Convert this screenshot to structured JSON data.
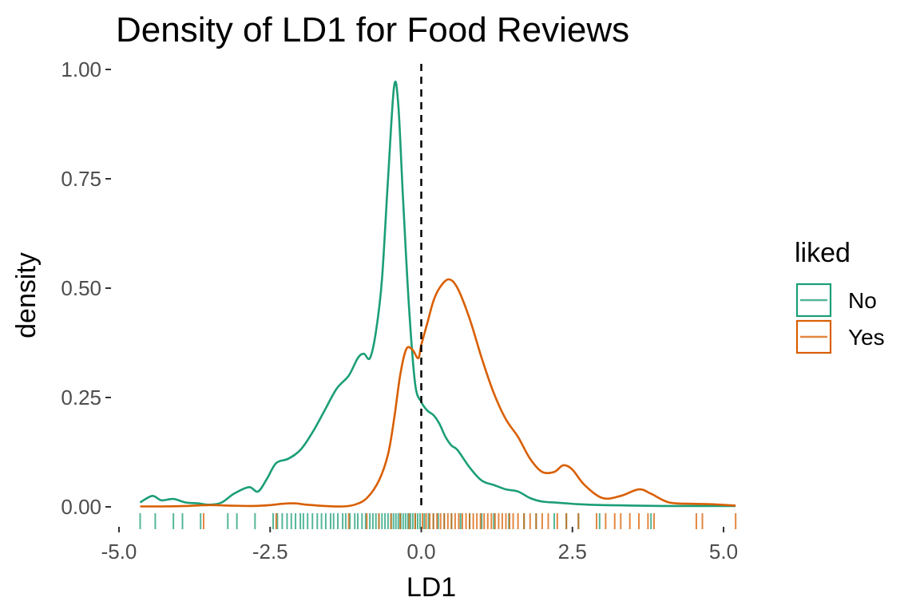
{
  "chart_data": {
    "type": "line",
    "title": "Density of LD1 for Food Reviews",
    "xlabel": "LD1",
    "ylabel": "density",
    "xlim": [
      -4.8,
      5.2
    ],
    "ylim": [
      0,
      1.0
    ],
    "xticks": [
      -5.0,
      -2.5,
      0.0,
      2.5,
      5.0
    ],
    "xtick_labels": [
      "-5.0",
      "-2.5",
      "0.0",
      "2.5",
      "5.0"
    ],
    "yticks": [
      0.0,
      0.25,
      0.5,
      0.75,
      1.0
    ],
    "ytick_labels": [
      "0.00",
      "0.25",
      "0.50",
      "0.75",
      "1.00"
    ],
    "vline": 0.0,
    "grid": false,
    "legend": {
      "title": "liked",
      "position": "right"
    },
    "series": [
      {
        "name": "No",
        "color": "#1b9e77",
        "x": [
          -4.65,
          -4.45,
          -4.3,
          -4.1,
          -3.9,
          -3.7,
          -3.5,
          -3.3,
          -3.1,
          -2.85,
          -2.7,
          -2.55,
          -2.4,
          -2.2,
          -2.0,
          -1.8,
          -1.6,
          -1.4,
          -1.2,
          -1.05,
          -0.95,
          -0.85,
          -0.75,
          -0.65,
          -0.55,
          -0.45,
          -0.38,
          -0.3,
          -0.2,
          -0.1,
          0.0,
          0.1,
          0.2,
          0.3,
          0.4,
          0.5,
          0.6,
          0.8,
          1.0,
          1.2,
          1.4,
          1.6,
          1.8,
          2.0,
          2.2,
          2.4,
          2.6,
          3.0,
          3.5,
          4.0,
          4.5,
          5.2
        ],
        "y": [
          0.01,
          0.025,
          0.015,
          0.018,
          0.01,
          0.008,
          0.005,
          0.01,
          0.03,
          0.045,
          0.035,
          0.065,
          0.1,
          0.11,
          0.13,
          0.17,
          0.22,
          0.27,
          0.3,
          0.34,
          0.35,
          0.34,
          0.4,
          0.52,
          0.75,
          0.96,
          0.92,
          0.7,
          0.45,
          0.28,
          0.24,
          0.22,
          0.21,
          0.19,
          0.16,
          0.14,
          0.13,
          0.09,
          0.06,
          0.05,
          0.04,
          0.035,
          0.02,
          0.012,
          0.01,
          0.008,
          0.006,
          0.004,
          0.003,
          0.002,
          0.002,
          0.002
        ]
      },
      {
        "name": "Yes",
        "color": "#d95f02",
        "x": [
          -4.65,
          -4.3,
          -3.9,
          -3.5,
          -3.2,
          -2.8,
          -2.5,
          -2.3,
          -2.1,
          -1.9,
          -1.6,
          -1.3,
          -1.1,
          -0.9,
          -0.7,
          -0.55,
          -0.45,
          -0.35,
          -0.25,
          -0.15,
          -0.05,
          0.0,
          0.1,
          0.2,
          0.3,
          0.45,
          0.6,
          0.8,
          1.0,
          1.2,
          1.4,
          1.6,
          1.8,
          2.0,
          2.2,
          2.35,
          2.5,
          2.7,
          3.0,
          3.3,
          3.6,
          3.8,
          4.1,
          4.5,
          4.8,
          5.2
        ],
        "y": [
          0.001,
          0.001,
          0.002,
          0.004,
          0.003,
          0.002,
          0.004,
          0.007,
          0.008,
          0.005,
          0.002,
          0.001,
          0.005,
          0.02,
          0.06,
          0.12,
          0.2,
          0.3,
          0.36,
          0.36,
          0.34,
          0.37,
          0.42,
          0.47,
          0.5,
          0.52,
          0.5,
          0.43,
          0.34,
          0.26,
          0.2,
          0.16,
          0.11,
          0.08,
          0.08,
          0.095,
          0.085,
          0.05,
          0.02,
          0.025,
          0.04,
          0.03,
          0.01,
          0.007,
          0.006,
          0.003
        ]
      }
    ],
    "rug": {
      "No": [
        -4.65,
        -4.4,
        -4.1,
        -3.95,
        -3.65,
        -3.2,
        -3.05,
        -2.75,
        -2.45,
        -2.38,
        -2.3,
        -2.22,
        -2.15,
        -2.08,
        -2.0,
        -1.95,
        -1.88,
        -1.8,
        -1.72,
        -1.65,
        -1.58,
        -1.5,
        -1.45,
        -1.38,
        -1.3,
        -1.25,
        -1.18,
        -1.1,
        -1.05,
        -0.98,
        -0.92,
        -0.85,
        -0.8,
        -0.75,
        -0.7,
        -0.65,
        -0.6,
        -0.55,
        -0.5,
        -0.46,
        -0.42,
        -0.38,
        -0.34,
        -0.3,
        -0.26,
        -0.22,
        -0.18,
        -0.14,
        -0.1,
        -0.06,
        -0.02,
        0.05,
        0.12,
        0.2,
        0.28,
        0.38,
        0.5,
        0.65,
        0.8,
        1.0,
        1.2,
        1.45,
        1.7,
        1.9,
        2.2,
        2.4,
        2.6,
        2.95,
        3.8
      ],
      "Yes": [
        -3.6,
        -2.4,
        -1.2,
        -0.9,
        -0.7,
        -0.5,
        -0.35,
        -0.2,
        -0.1,
        0.02,
        0.08,
        0.14,
        0.2,
        0.26,
        0.32,
        0.38,
        0.44,
        0.5,
        0.56,
        0.62,
        0.68,
        0.74,
        0.8,
        0.86,
        0.92,
        0.98,
        1.04,
        1.1,
        1.16,
        1.22,
        1.28,
        1.34,
        1.4,
        1.46,
        1.52,
        1.6,
        1.7,
        1.8,
        1.9,
        2.0,
        2.1,
        2.25,
        2.4,
        2.6,
        2.9,
        3.05,
        3.2,
        3.3,
        3.45,
        3.6,
        3.75,
        3.85,
        4.55,
        4.65,
        5.2
      ]
    }
  }
}
